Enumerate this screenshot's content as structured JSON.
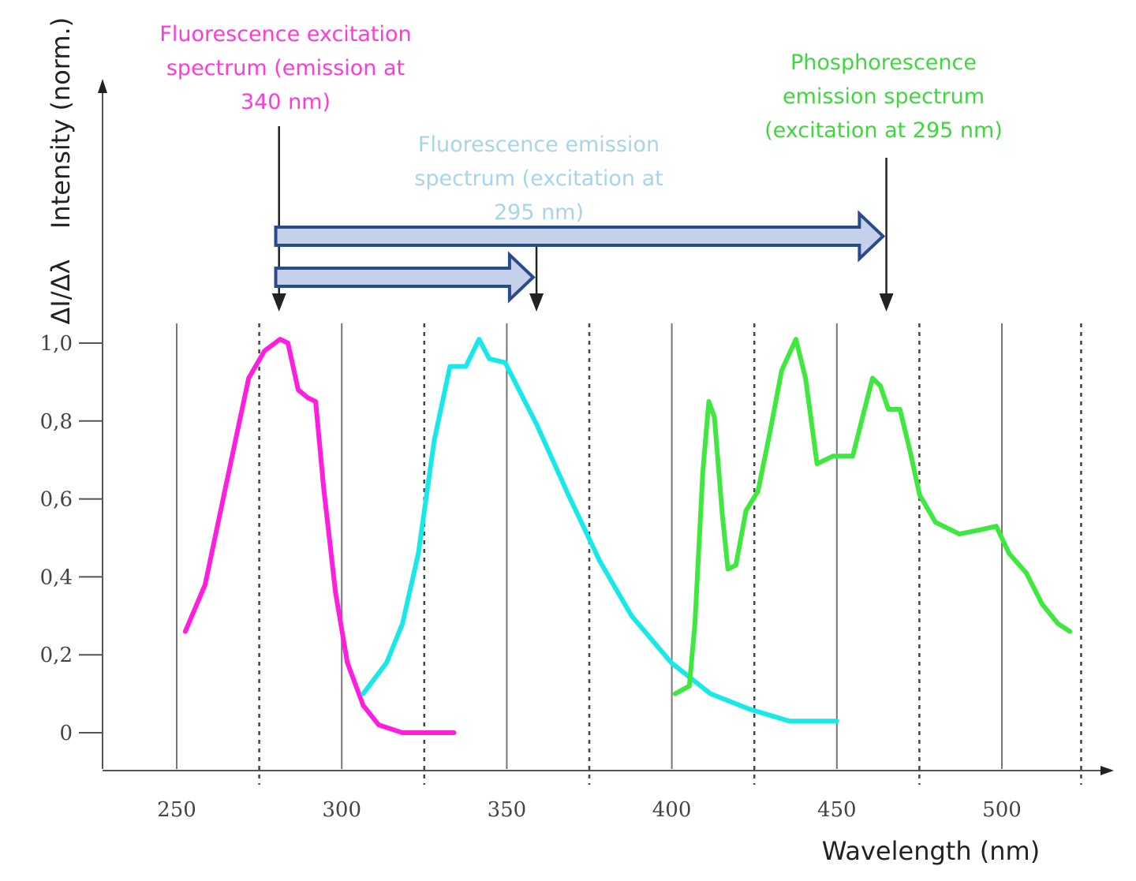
{
  "chart_data": {
    "type": "line",
    "title": "",
    "xlabel": "Wavelength (nm)",
    "ylabel": "Intensity (norm.)",
    "ylabel_prefix": "ΔI/Δλ",
    "xlim": [
      227,
      530
    ],
    "ylim": [
      -0.1,
      1.0
    ],
    "xticks": [
      250,
      300,
      350,
      400,
      450,
      500
    ],
    "xtick_labels": [
      "250",
      "300",
      "350",
      "400",
      "450",
      "500"
    ],
    "yticks": [
      0,
      0.2,
      0.4,
      0.6,
      0.8,
      1.0
    ],
    "ytick_labels": [
      "0",
      "0,2",
      "0,4",
      "0,6",
      "0,8",
      "1,0"
    ],
    "grid_solid_x": [
      250,
      300,
      350,
      400,
      450,
      500
    ],
    "grid_dotted_x": [
      275,
      325,
      375,
      425,
      475,
      524
    ],
    "series": [
      {
        "color": "#ff1ee0",
        "x": [
          252.6,
          258.6,
          265.8,
          271.8,
          276.6,
          281.3,
          283.7,
          286.8,
          289.7,
          292.1,
          294.5,
          298.1,
          301.7,
          306.5,
          311.2,
          318.4,
          334
        ],
        "y": [
          0.26,
          0.38,
          0.67,
          0.91,
          0.98,
          1.01,
          1.0,
          0.88,
          0.86,
          0.85,
          0.63,
          0.36,
          0.18,
          0.07,
          0.02,
          0.0,
          0.0
        ]
      },
      {
        "color": "#19e8e8",
        "x": [
          306.5,
          313.6,
          318.4,
          323.2,
          328,
          332.8,
          337.6,
          341.6,
          344.7,
          349.5,
          359.1,
          368.7,
          378.2,
          387.8,
          399.8,
          411.7,
          423.7,
          435.6,
          450
        ],
        "y": [
          0.1,
          0.18,
          0.28,
          0.46,
          0.75,
          0.94,
          0.94,
          1.01,
          0.96,
          0.95,
          0.79,
          0.61,
          0.44,
          0.3,
          0.18,
          0.1,
          0.06,
          0.03,
          0.03
        ]
      },
      {
        "color": "#3ee83e",
        "x": [
          401,
          405.3,
          407,
          409.4,
          411.2,
          412.9,
          415.3,
          417,
          419.4,
          422.5,
          426.1,
          429.7,
          433.3,
          437.6,
          440.5,
          444,
          448.8,
          454.8,
          458.4,
          460.8,
          463.2,
          465.6,
          469.1,
          472,
          475.1,
          479.9,
          487.1,
          493.1,
          498.3,
          502.2,
          507.4,
          512.2,
          517,
          520.6
        ],
        "y": [
          0.1,
          0.12,
          0.28,
          0.67,
          0.85,
          0.81,
          0.56,
          0.42,
          0.43,
          0.57,
          0.62,
          0.77,
          0.93,
          1.01,
          0.91,
          0.69,
          0.71,
          0.71,
          0.83,
          0.91,
          0.89,
          0.83,
          0.83,
          0.73,
          0.61,
          0.54,
          0.51,
          0.52,
          0.53,
          0.46,
          0.41,
          0.33,
          0.28,
          0.26
        ]
      }
    ],
    "annotations": [
      {
        "lines": [
          "Fluorescence excitation",
          "spectrum (emission at",
          "340 nm)"
        ],
        "color": "#ff3ad8",
        "points_to_x": 281
      },
      {
        "lines": [
          "Fluorescence emission",
          "spectrum (excitation at",
          "295 nm)"
        ],
        "color": "#a8d4ea",
        "points_to_x": 359
      },
      {
        "lines": [
          "Phosphorescence",
          "emission spectrum",
          "(excitation at 295 nm)"
        ],
        "color": "#3ed83e",
        "points_to_x": 465
      }
    ],
    "block_arrows": [
      {
        "from_x": 280,
        "to_x": 464,
        "fill": "#c5d0ea",
        "stroke": "#2a4a8a"
      },
      {
        "from_x": 280,
        "to_x": 358,
        "fill": "#c5d0ea",
        "stroke": "#2a4a8a"
      }
    ]
  }
}
